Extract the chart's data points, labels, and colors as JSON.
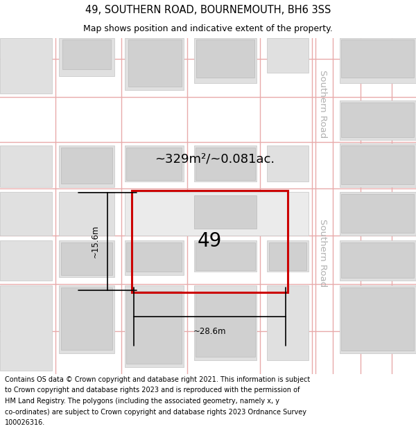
{
  "title_line1": "49, SOUTHERN ROAD, BOURNEMOUTH, BH6 3SS",
  "title_line2": "Map shows position and indicative extent of the property.",
  "footer_text": "Contains OS data © Crown copyright and database right 2021. This information is subject to Crown copyright and database rights 2023 and is reproduced with the permission of HM Land Registry. The polygons (including the associated geometry, namely x, y co-ordinates) are subject to Crown copyright and database rights 2023 Ordnance Survey 100026316.",
  "map_bg": "#f8f8f8",
  "road_line_color": "#e8aaaa",
  "block_fill": "#e0e0e0",
  "block_edge": "#cccccc",
  "inner_fill": "#d0d0d0",
  "inner_edge": "#c0c0c0",
  "highlight_color": "#cc0000",
  "highlight_lw": 2.2,
  "property_label": "49",
  "area_label": "~329m²/~0.081ac.",
  "width_label": "~28.6m",
  "height_label": "~15.6m",
  "road_label": "Southern Road",
  "title_fontsize": 10.5,
  "subtitle_fontsize": 9.0,
  "footer_fontsize": 7.0,
  "map_label_fontsize": 8.0,
  "property_num_fontsize": 20,
  "area_fontsize": 13,
  "dim_fontsize": 8.5,
  "road_text_fontsize": 9.5,
  "road_text_color": "#b0b0b0"
}
